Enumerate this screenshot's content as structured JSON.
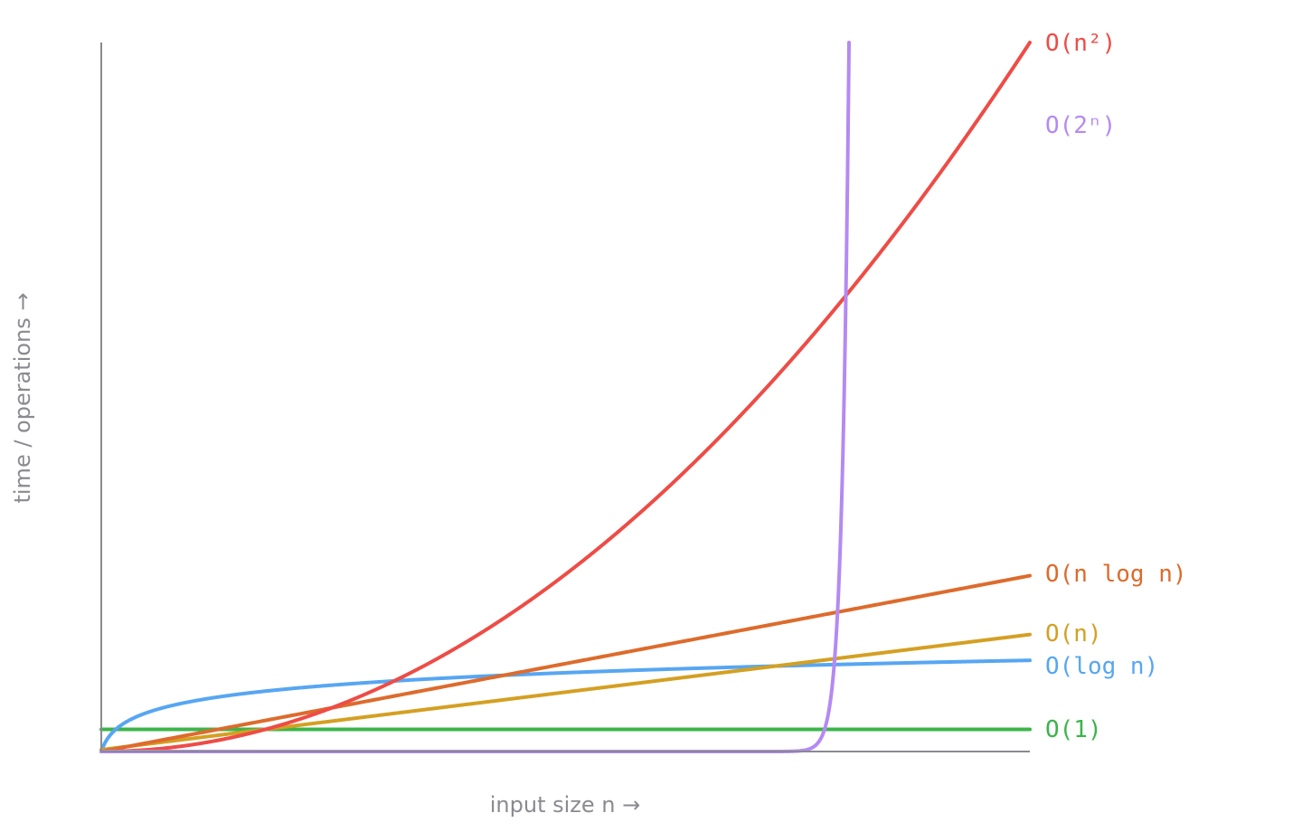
{
  "chart_data": {
    "type": "line",
    "title": "",
    "xlabel": "input size n →",
    "ylabel": "time / operations →",
    "x_domain": [
      0,
      20
    ],
    "y_domain": [
      0,
      400
    ],
    "grid": false,
    "legend": "inline labels at right end of each line",
    "axis_color": "#8a8a90",
    "label_color": "#8a8a90",
    "series": [
      {
        "name": "O(1)",
        "label": "O(1)",
        "color": "#3bb54a",
        "func": "const",
        "values": [
          {
            "x": 0,
            "y": 12.5
          },
          {
            "x": 20,
            "y": 12.5
          }
        ]
      },
      {
        "name": "O(log n)",
        "label": "O(log n)",
        "color": "#57a6f2",
        "func": "log",
        "values": [
          {
            "x": 1,
            "y": 8
          },
          {
            "x": 5,
            "y": 28
          },
          {
            "x": 10,
            "y": 39
          },
          {
            "x": 20,
            "y": 49.5
          }
        ]
      },
      {
        "name": "O(n)",
        "label": "O(n)",
        "color": "#d4a023",
        "func": "linear",
        "values": [
          {
            "x": 0,
            "y": 1
          },
          {
            "x": 10,
            "y": 33.5
          },
          {
            "x": 20,
            "y": 66
          }
        ]
      },
      {
        "name": "O(n log n)",
        "label": "O(n log n)",
        "color": "#dd6b2c",
        "func": "nlogn",
        "values": [
          {
            "x": 0,
            "y": 0
          },
          {
            "x": 10,
            "y": 49.6
          },
          {
            "x": 20,
            "y": 99.2
          }
        ]
      },
      {
        "name": "O(n²)",
        "label": "O(n²)",
        "color": "#ee4c46",
        "func": "square",
        "values": [
          {
            "x": 0,
            "y": 0
          },
          {
            "x": 5,
            "y": 25
          },
          {
            "x": 10,
            "y": 100
          },
          {
            "x": 15,
            "y": 225
          },
          {
            "x": 20,
            "y": 400
          }
        ]
      },
      {
        "name": "O(2ⁿ)",
        "label": "O(2ⁿ)",
        "color": "#b48af2",
        "func": "exp",
        "values": [
          {
            "x": 0,
            "y": 0
          },
          {
            "x": 10,
            "y": 0.2
          },
          {
            "x": 13,
            "y": 2.6
          },
          {
            "x": 15,
            "y": 20
          },
          {
            "x": 16,
            "y": 200
          },
          {
            "x": 16.1,
            "y": 400
          }
        ]
      }
    ]
  }
}
